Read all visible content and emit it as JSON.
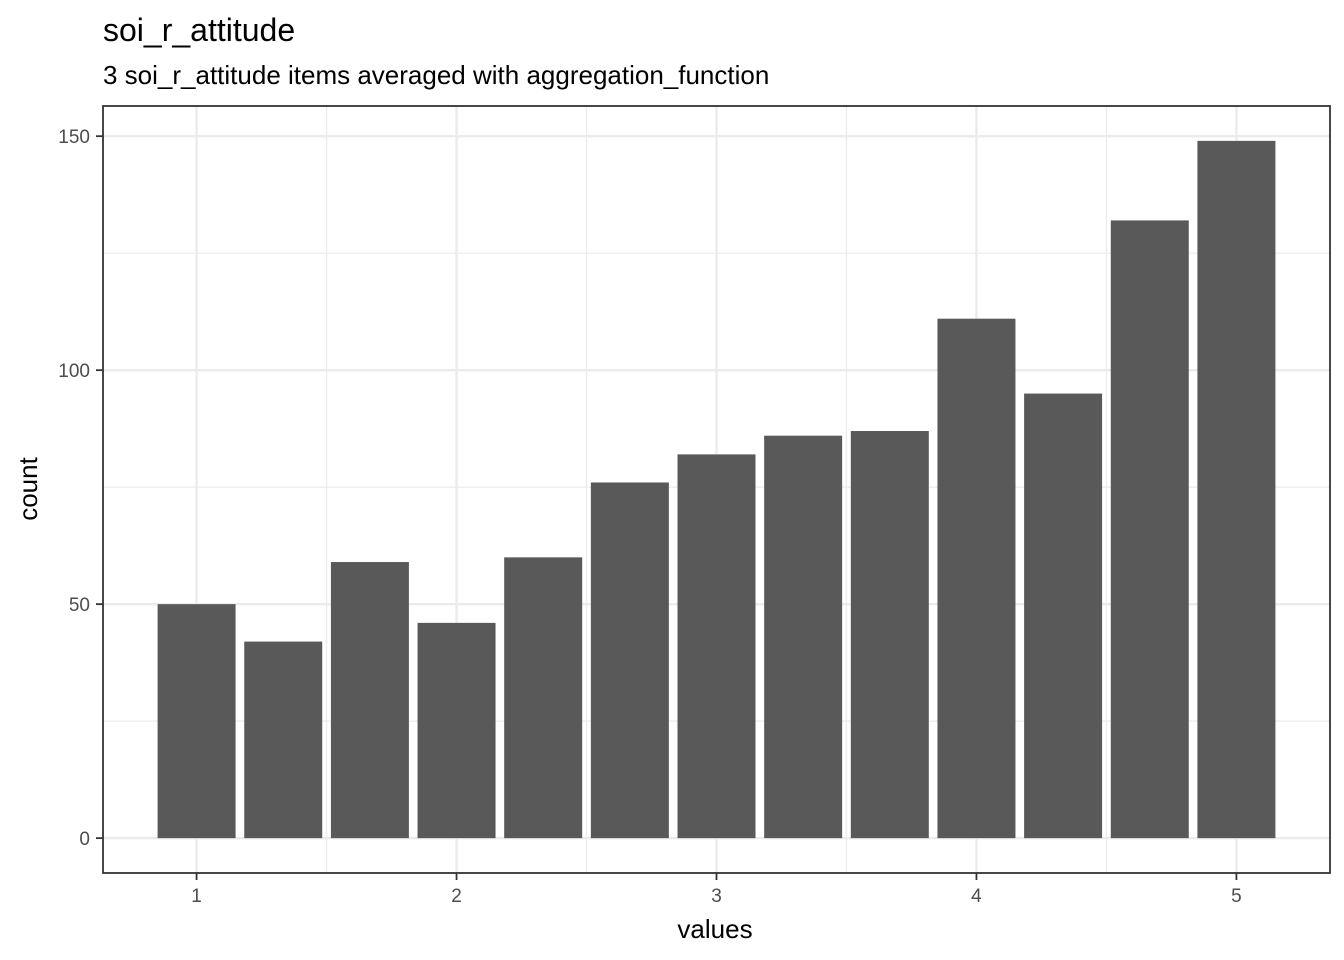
{
  "chart_data": {
    "type": "bar",
    "title": "soi_r_attitude",
    "subtitle": "3 soi_r_attitude items averaged with aggregation_function",
    "xlabel": "values",
    "ylabel": "count",
    "x": [
      1,
      1.3333,
      1.6667,
      2,
      2.3333,
      2.6667,
      3,
      3.3333,
      3.6667,
      4,
      4.3333,
      4.6667,
      5
    ],
    "values": [
      50,
      42,
      59,
      46,
      60,
      76,
      82,
      86,
      87,
      111,
      95,
      132,
      149
    ],
    "bar_width": 0.3,
    "xlim": [
      0.64,
      5.36
    ],
    "ylim": [
      -7.45,
      156.45
    ],
    "x_ticks": [
      1,
      2,
      3,
      4,
      5
    ],
    "y_ticks": [
      0,
      50,
      100,
      150
    ],
    "grid": true,
    "bar_color": "#595959",
    "grid_color": "#ebebeb",
    "panel_border_color": "#333333"
  }
}
